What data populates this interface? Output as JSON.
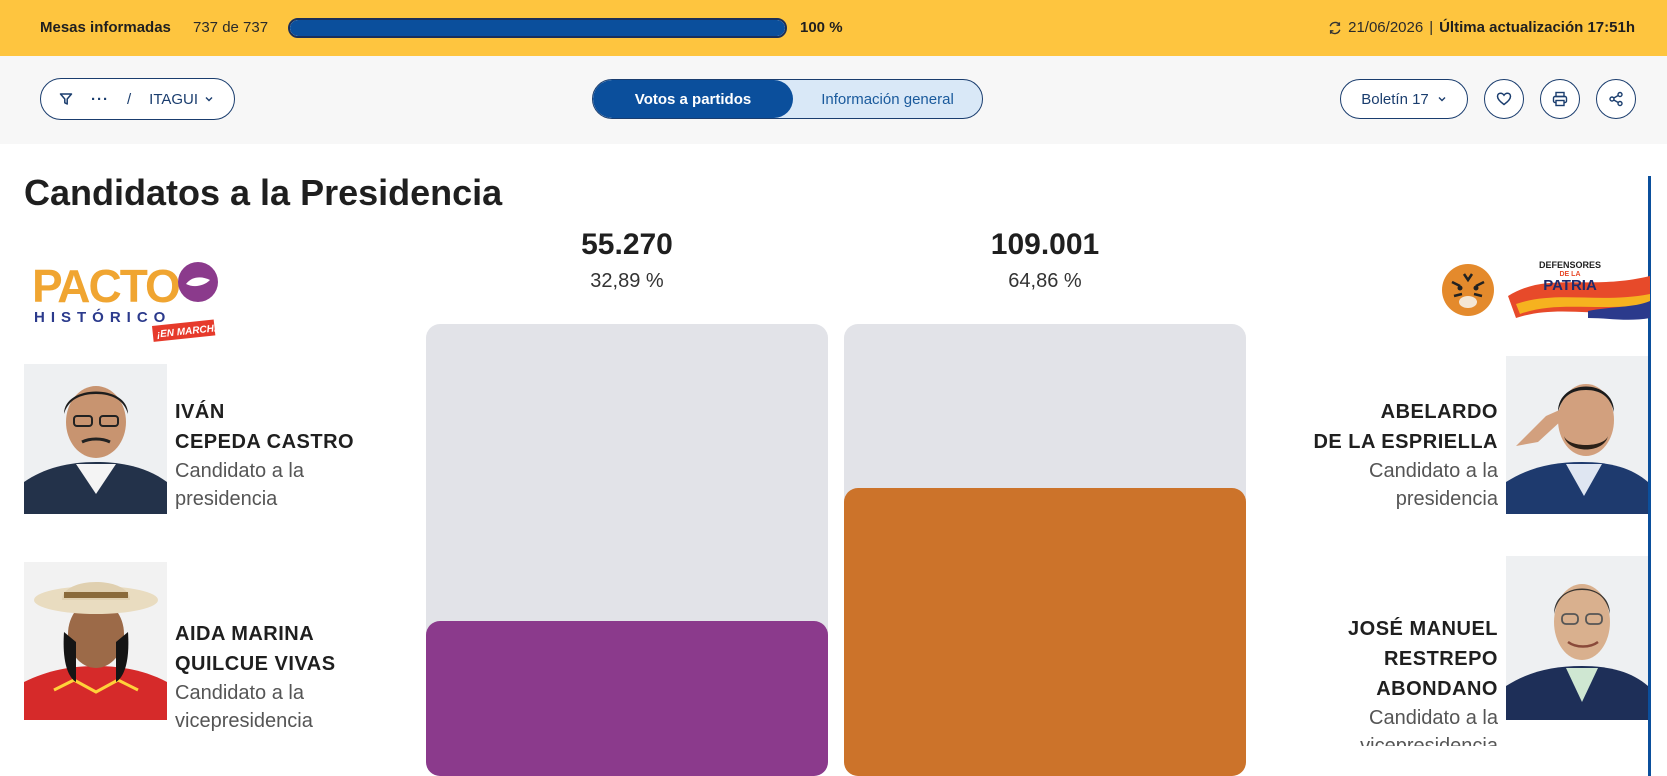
{
  "status": {
    "label": "Mesas informadas",
    "count": "737 de 737",
    "progress": 1.0,
    "percent": "100 %",
    "date": "21/06/2026",
    "separator": "|",
    "update_label": "Última actualización 17:51h"
  },
  "toolbar": {
    "breadcrumb_dots": "···",
    "breadcrumb_sep": "/",
    "breadcrumb_location": "ITAGUI",
    "tab_active": "Votos a partidos",
    "tab_inactive": "Información general",
    "boletin": "Boletín 17"
  },
  "main": {
    "title": "Candidatos a la Presidencia"
  },
  "parties": {
    "left": {
      "logo_text_top": "PACTO",
      "logo_text_mid": "HISTÓRICO",
      "logo_text_bottom": "¡EN MARCHA!"
    },
    "right": {
      "logo_text_top": "DEFENSORES",
      "logo_text_mid": "DE LA",
      "logo_text_bottom": "PATRIA"
    }
  },
  "candidates": {
    "left_president": {
      "name_1": "IVÁN",
      "name_2": "CEPEDA CASTRO",
      "role_1": "Candidato a la",
      "role_2": "presidencia"
    },
    "left_vice": {
      "name_1": "AIDA MARINA",
      "name_2": "QUILCUE VIVAS",
      "role_1": "Candidato a la",
      "role_2": "vicepresidencia"
    },
    "right_president": {
      "name_1": "ABELARDO",
      "name_2": "DE LA ESPRIELLA",
      "role_1": "Candidato a la",
      "role_2": "presidencia"
    },
    "right_vice": {
      "name_1": "JOSÉ MANUEL",
      "name_2": "RESTREPO",
      "name_3": "ABONDANO",
      "role_1": "Candidato a la",
      "role_2": "vicepresidencia"
    }
  },
  "results": {
    "left": {
      "votes": "55.270",
      "percent": "32,89 %",
      "share": 32.89,
      "color": "#8b3a8c"
    },
    "right": {
      "votes": "109.001",
      "percent": "64,86 %",
      "share": 64.86,
      "color": "#cc732a"
    }
  },
  "colors": {
    "topbar": "#fec53f",
    "primary": "#0b4f9c",
    "track": "#e2e3e8"
  }
}
